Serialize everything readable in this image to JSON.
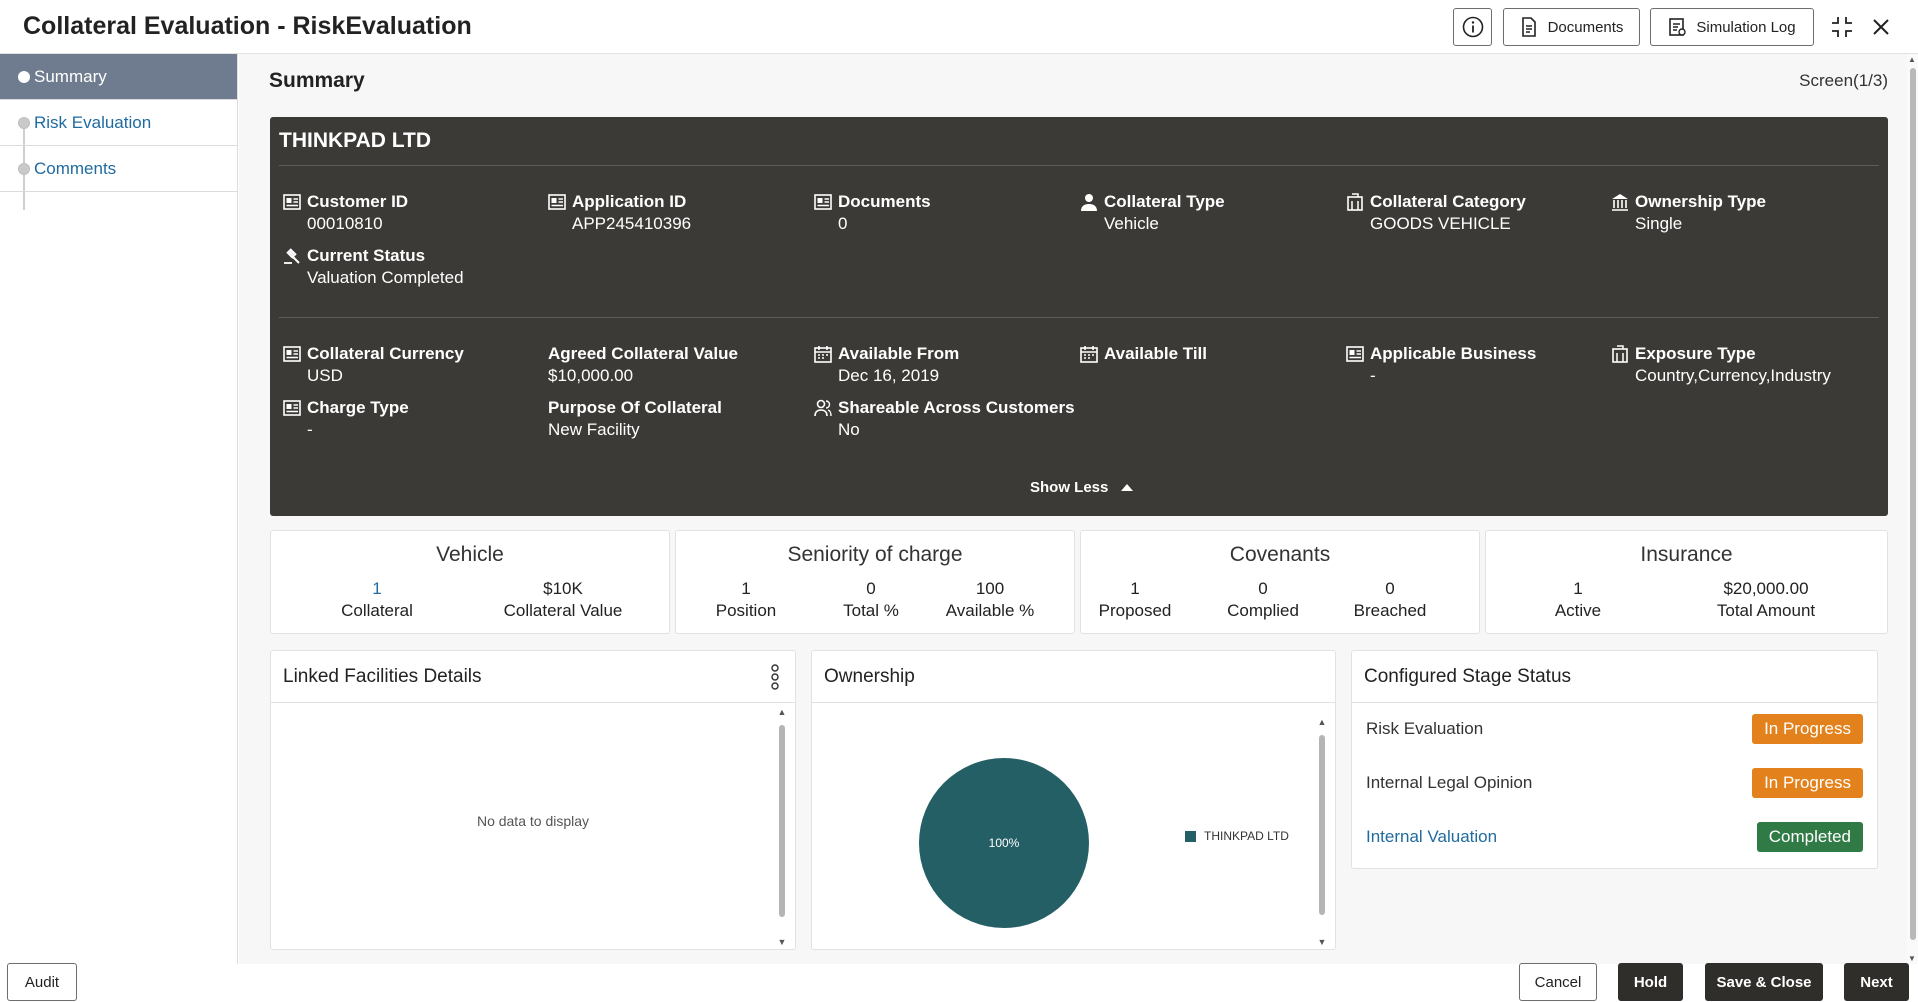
{
  "header": {
    "title": "Collateral Evaluation - RiskEvaluation",
    "documents_label": "Documents",
    "simulation_log_label": "Simulation Log"
  },
  "sidebar": {
    "items": [
      {
        "label": "Summary",
        "active": true
      },
      {
        "label": "Risk Evaluation",
        "active": false
      },
      {
        "label": "Comments",
        "active": false
      }
    ]
  },
  "main": {
    "title": "Summary",
    "screen_counter": "Screen(1/3)",
    "customer": {
      "name": "THINKPAD LTD",
      "customer_id": {
        "label": "Customer ID",
        "value": "00010810"
      },
      "application_id": {
        "label": "Application ID",
        "value": "APP245410396"
      },
      "documents": {
        "label": "Documents",
        "value": "0"
      },
      "collateral_type": {
        "label": "Collateral Type",
        "value": "Vehicle"
      },
      "collateral_category": {
        "label": "Collateral Category",
        "value": "GOODS VEHICLE"
      },
      "ownership_type": {
        "label": "Ownership Type",
        "value": "Single"
      },
      "current_status": {
        "label": "Current Status",
        "value": "Valuation Completed"
      },
      "collateral_currency": {
        "label": "Collateral Currency",
        "value": "USD"
      },
      "agreed_collateral_value": {
        "label": "Agreed Collateral Value",
        "value": "$10,000.00"
      },
      "available_from": {
        "label": "Available From",
        "value": "Dec 16, 2019"
      },
      "available_till": {
        "label": "Available Till",
        "value": ""
      },
      "applicable_business": {
        "label": "Applicable Business",
        "value": "-"
      },
      "exposure_type": {
        "label": "Exposure Type",
        "value": "Country,Currency,Industry"
      },
      "charge_type": {
        "label": "Charge Type",
        "value": "-"
      },
      "purpose_of_collateral": {
        "label": "Purpose Of Collateral",
        "value": "New Facility"
      },
      "shareable": {
        "label": "Shareable Across Customers",
        "value": "No"
      },
      "show_less": "Show Less"
    },
    "stats": {
      "vehicle": {
        "title": "Vehicle",
        "cols": [
          {
            "n": "1",
            "l": "Collateral"
          },
          {
            "n": "$10K",
            "l": "Collateral Value"
          }
        ]
      },
      "seniority": {
        "title": "Seniority of charge",
        "cols": [
          {
            "n": "1",
            "l": "Position"
          },
          {
            "n": "0",
            "l": "Total %"
          },
          {
            "n": "100",
            "l": "Available %"
          }
        ]
      },
      "covenants": {
        "title": "Covenants",
        "cols": [
          {
            "n": "1",
            "l": "Proposed"
          },
          {
            "n": "0",
            "l": "Complied"
          },
          {
            "n": "0",
            "l": "Breached"
          }
        ]
      },
      "insurance": {
        "title": "Insurance",
        "cols": [
          {
            "n": "1",
            "l": "Active"
          },
          {
            "n": "$20,000.00",
            "l": "Total Amount"
          }
        ]
      }
    },
    "linked_facilities": {
      "title": "Linked Facilities Details",
      "empty_text": "No data to display"
    },
    "ownership": {
      "title": "Ownership",
      "slice_label": "100%",
      "legend": "THINKPAD LTD",
      "color": "#245f66"
    },
    "stage_status": {
      "title": "Configured Stage Status",
      "rows": [
        {
          "name": "Risk Evaluation",
          "status": "In Progress",
          "color": "#e3821c",
          "link": false
        },
        {
          "name": "Internal Legal Opinion",
          "status": "In Progress",
          "color": "#e3821c",
          "link": false
        },
        {
          "name": "Internal Valuation",
          "status": "Completed",
          "color": "#2f7a45",
          "link": true
        }
      ]
    }
  },
  "footer": {
    "audit": "Audit",
    "cancel": "Cancel",
    "hold": "Hold",
    "save_close": "Save & Close",
    "next": "Next"
  }
}
